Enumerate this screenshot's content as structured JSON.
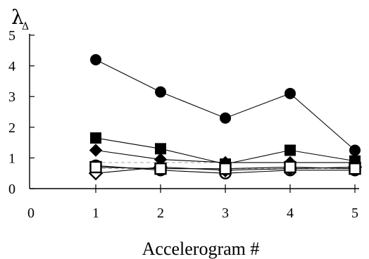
{
  "chart_data": {
    "type": "line",
    "xlabel": "Accelerogram #",
    "ylabel": "λ",
    "ylabel_subscript": "Δ",
    "x": [
      1,
      2,
      3,
      4,
      5
    ],
    "xlim": [
      0,
      5
    ],
    "ylim": [
      0,
      5
    ],
    "xticks": [
      "0",
      "1",
      "2",
      "3",
      "4",
      "5"
    ],
    "yticks": [
      "0",
      "1",
      "2",
      "3",
      "4",
      "5"
    ],
    "grid": false,
    "series": [
      {
        "marker": "filled-circle",
        "color": "#000000",
        "values": [
          4.2,
          3.15,
          2.3,
          3.1,
          1.25
        ]
      },
      {
        "marker": "filled-square",
        "color": "#000000",
        "values": [
          1.65,
          1.3,
          0.8,
          1.25,
          0.9
        ]
      },
      {
        "marker": "filled-diamond",
        "color": "#000000",
        "values": [
          1.25,
          0.95,
          0.85,
          0.85,
          0.85
        ]
      },
      {
        "marker": "open-circle",
        "color": "#000000",
        "values": [
          0.75,
          0.6,
          0.5,
          0.6,
          0.6
        ]
      },
      {
        "marker": "open-diamond",
        "color": "#000000",
        "values": [
          0.5,
          0.7,
          0.6,
          0.65,
          0.7
        ]
      },
      {
        "marker": "open-square",
        "color": "#000000",
        "values": [
          0.7,
          0.65,
          0.65,
          0.7,
          0.65
        ]
      }
    ]
  }
}
